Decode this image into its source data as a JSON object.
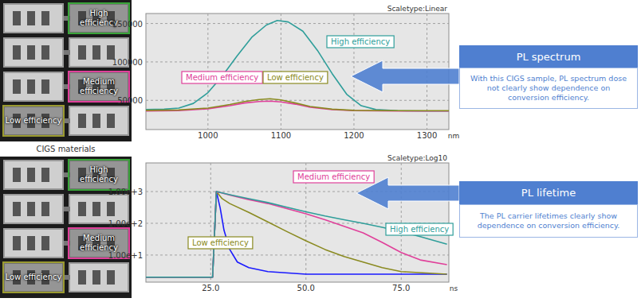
{
  "chart_data": [
    {
      "type": "line",
      "title": "Scaletype:Linear",
      "x_label": "nm",
      "xlim": [
        915,
        1330
      ],
      "xticks": [
        1000,
        1100,
        1200,
        1300
      ],
      "ylim": [
        12000,
        163000
      ],
      "yticks": [
        50000,
        100000,
        150000
      ],
      "grid": true,
      "series": [
        {
          "name": "High efficiency",
          "color": "#2f9e9a",
          "x": [
            915,
            940,
            960,
            980,
            1000,
            1020,
            1040,
            1060,
            1080,
            1095,
            1110,
            1130,
            1150,
            1170,
            1190,
            1210,
            1230,
            1260,
            1300,
            1330
          ],
          "values": [
            38000,
            38500,
            40000,
            46000,
            60000,
            82000,
            108000,
            132000,
            148000,
            154000,
            152000,
            140000,
            115000,
            85000,
            58000,
            43000,
            38000,
            36500,
            36000,
            36000
          ]
        },
        {
          "name": "Medium efficiency",
          "color": "#e0409a",
          "x": [
            915,
            960,
            1000,
            1030,
            1050,
            1070,
            1085,
            1100,
            1120,
            1140,
            1170,
            1200,
            1260,
            1330
          ],
          "values": [
            36000,
            36500,
            39000,
            43000,
            46500,
            48500,
            49000,
            48000,
            45000,
            41000,
            38000,
            36500,
            36000,
            36000
          ]
        },
        {
          "name": "Low efficiency",
          "color": "#8a8a20",
          "x": [
            915,
            960,
            1000,
            1030,
            1050,
            1070,
            1085,
            1100,
            1120,
            1140,
            1170,
            1200,
            1260,
            1330
          ],
          "values": [
            37000,
            37500,
            40000,
            44500,
            48500,
            51000,
            52000,
            50500,
            46500,
            42000,
            38500,
            37000,
            36500,
            36500
          ]
        }
      ]
    },
    {
      "type": "line",
      "title": "Scaletype:Log10",
      "x_label": "ns",
      "log": "y",
      "xlim": [
        8,
        87.5
      ],
      "xticks": [
        {
          "value": 25,
          "label": "25.0"
        },
        {
          "value": 50,
          "label": "50.0"
        },
        {
          "value": 75,
          "label": "75.0"
        }
      ],
      "ylim": [
        1.4,
        8000
      ],
      "yticks": [
        {
          "value": 10,
          "label": "1.00e+1"
        },
        {
          "value": 100,
          "label": "1.00e+2"
        },
        {
          "value": 1000,
          "label": "1.00e+3"
        }
      ],
      "grid": true,
      "series": [
        {
          "color": "#1a1aff",
          "x": [
            8,
            25.5,
            26.5,
            27.5,
            28.5,
            30,
            32,
            35,
            40,
            50,
            60,
            70,
            80,
            87
          ],
          "values": [
            2,
            2,
            1000,
            300,
            60,
            15,
            6,
            4,
            3,
            2.5,
            2.5,
            2.5,
            2.5,
            2.5
          ]
        },
        {
          "name": "Low efficiency",
          "color": "#8a8a20",
          "x": [
            8,
            25.5,
            26.5,
            28,
            30,
            35,
            40,
            45,
            50,
            55,
            60,
            65,
            70,
            75,
            87
          ],
          "values": [
            2,
            2,
            1000,
            600,
            420,
            220,
            110,
            55,
            28,
            15,
            9,
            6,
            4,
            3,
            2.5
          ]
        },
        {
          "name": "Medium efficiency",
          "color": "#e0409a",
          "x": [
            8,
            25.5,
            26.5,
            30,
            35,
            40,
            45,
            50,
            55,
            60,
            65,
            70,
            75,
            80,
            87
          ],
          "values": [
            2,
            2,
            1000,
            780,
            560,
            420,
            290,
            200,
            130,
            80,
            50,
            25,
            12,
            7,
            5
          ]
        },
        {
          "name": "High efficiency",
          "color": "#2f9e9a",
          "x": [
            8,
            25.5,
            26.5,
            30,
            35,
            40,
            45,
            50,
            55,
            60,
            65,
            70,
            75,
            80,
            87
          ],
          "values": [
            2,
            2,
            1000,
            800,
            600,
            450,
            320,
            230,
            170,
            130,
            100,
            75,
            55,
            38,
            22
          ]
        }
      ]
    }
  ],
  "figure": {
    "images": [
      {
        "labels": [
          "High efficiency",
          "Medium efficiency",
          "Low efficiency"
        ]
      },
      {
        "labels": [
          "High efficiency",
          "Medium efficiency",
          "Low efficiency"
        ]
      }
    ],
    "caption": "CIGS materials",
    "callouts": [
      {
        "title": "PL spectrum",
        "text": "With this CIGS sample, PL spectrum dose not clearly show dependence on conversion efficiency."
      },
      {
        "title": "PL lifetime",
        "text": "The PL carrier lifetimes clearly show dependence on conversion efficiency."
      }
    ]
  }
}
